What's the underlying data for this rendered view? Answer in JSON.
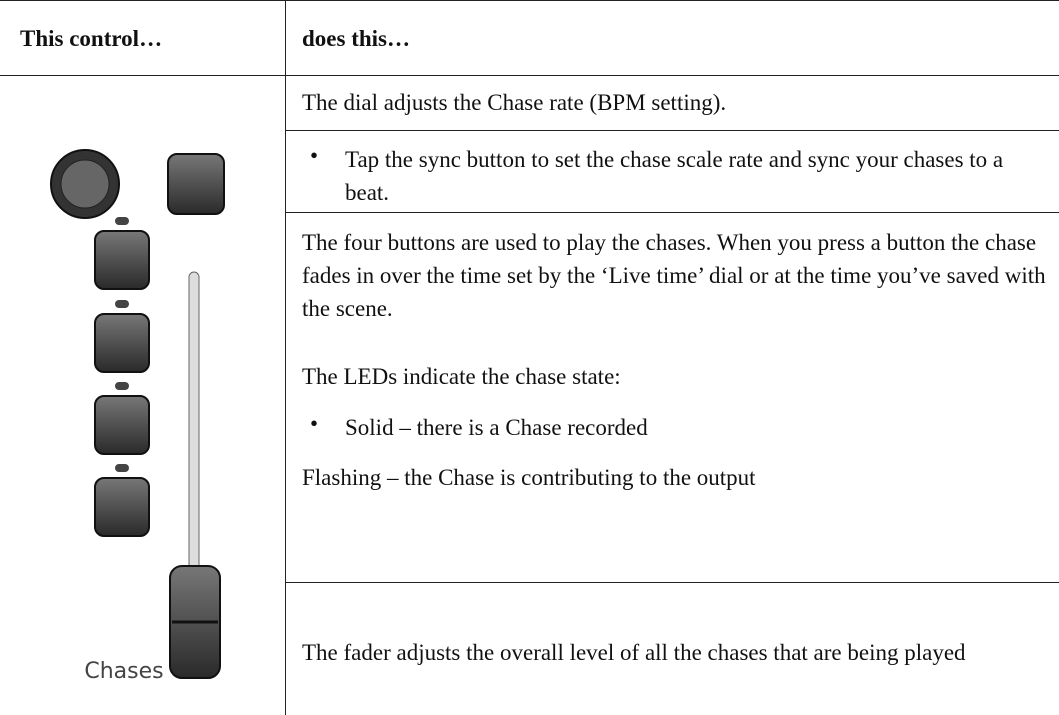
{
  "header": {
    "col1": "This control…",
    "col2": "does this…"
  },
  "rows": [
    {
      "text": "The dial adjusts the Chase rate (BPM setting)."
    },
    {
      "bullet": "Tap the sync button to set the chase scale rate and sync your chases to a beat."
    },
    {
      "paragraphs": [
        "The four buttons are used to play the chases. When you press a button the chase fades in over the time set by the ‘Live time’ dial or at the time you’ve saved with the scene.",
        "The LEDs indicate the chase state:"
      ],
      "bullet": "Solid – there is a Chase recorded",
      "after": "Flashing – the Chase is contributing to the output"
    },
    {
      "text": "The fader adjusts the overall level of all the chases that are being played"
    }
  ],
  "image": {
    "label": "Chases"
  }
}
